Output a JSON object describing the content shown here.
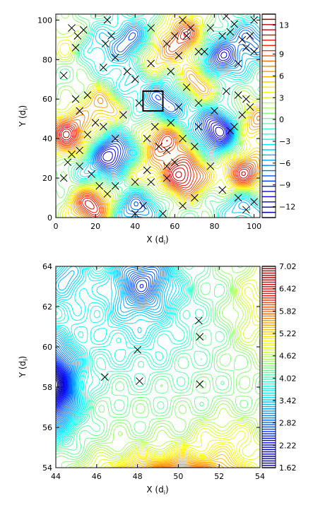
{
  "chart_data": [
    {
      "type": "contour",
      "xlabel": "X (d",
      "xlabel_sub": "i",
      "xlabel_close": ")",
      "ylabel": "Y (d",
      "ylabel_sub": "i",
      "ylabel_close": ")",
      "xlim": [
        0,
        103
      ],
      "ylim": [
        0,
        103
      ],
      "xticks": [
        "0",
        "20",
        "40",
        "60",
        "80",
        "100"
      ],
      "yticks": [
        "0",
        "20",
        "40",
        "60",
        "80",
        "100"
      ],
      "colorbar": {
        "ticks": [
          "13",
          "9",
          "6",
          "3",
          "0",
          "−3",
          "−6",
          "−9",
          "−12"
        ],
        "range": [
          -13.5,
          14.5
        ]
      },
      "peaks": [
        {
          "x": 18,
          "y": 7,
          "v": 13
        },
        {
          "x": 6,
          "y": 42,
          "v": 12
        },
        {
          "x": 65,
          "y": 21,
          "v": 13
        },
        {
          "x": 95,
          "y": 22,
          "v": 12
        },
        {
          "x": 55,
          "y": 40,
          "v": 11
        },
        {
          "x": 25,
          "y": 58,
          "v": 9
        },
        {
          "x": 47,
          "y": 83,
          "v": 10
        },
        {
          "x": 65,
          "y": 92,
          "v": 10
        },
        {
          "x": 72,
          "y": 68,
          "v": 9
        },
        {
          "x": 100,
          "y": 48,
          "v": 8
        },
        {
          "x": 40,
          "y": 22,
          "v": 7
        },
        {
          "x": 10,
          "y": 88,
          "v": 8
        },
        {
          "x": 30,
          "y": 31,
          "v": -13
        },
        {
          "x": 40,
          "y": 88,
          "v": -12
        },
        {
          "x": 82,
          "y": 44,
          "v": -13
        },
        {
          "x": 82,
          "y": 80,
          "v": -11
        },
        {
          "x": 16,
          "y": 87,
          "v": -8
        },
        {
          "x": 40,
          "y": 6,
          "v": -9
        },
        {
          "x": 95,
          "y": 6,
          "v": -7
        },
        {
          "x": 33,
          "y": 66,
          "v": -6
        },
        {
          "x": 54,
          "y": 60,
          "v": -7
        },
        {
          "x": 100,
          "y": 90,
          "v": -7
        },
        {
          "x": 62,
          "y": 52,
          "v": -5
        },
        {
          "x": 16,
          "y": 20,
          "v": -4
        }
      ],
      "markers": [
        [
          8,
          96
        ],
        [
          11,
          92
        ],
        [
          14,
          95
        ],
        [
          10,
          86
        ],
        [
          25,
          88
        ],
        [
          28,
          92
        ],
        [
          30,
          81
        ],
        [
          36,
          74
        ],
        [
          40,
          70
        ],
        [
          48,
          78
        ],
        [
          56,
          88
        ],
        [
          60,
          92
        ],
        [
          62,
          82
        ],
        [
          58,
          74
        ],
        [
          66,
          92
        ],
        [
          68,
          96
        ],
        [
          72,
          84
        ],
        [
          75,
          84
        ],
        [
          84,
          92
        ],
        [
          88,
          94
        ],
        [
          90,
          98
        ],
        [
          94,
          90
        ],
        [
          96,
          86
        ],
        [
          92,
          78
        ],
        [
          98,
          92
        ],
        [
          100,
          84
        ],
        [
          96,
          60
        ],
        [
          98,
          56
        ],
        [
          92,
          62
        ],
        [
          94,
          52
        ],
        [
          86,
          64
        ],
        [
          88,
          44
        ],
        [
          90,
          46
        ],
        [
          80,
          54
        ],
        [
          72,
          58
        ],
        [
          66,
          66
        ],
        [
          62,
          56
        ],
        [
          58,
          48
        ],
        [
          50,
          46
        ],
        [
          46,
          40
        ],
        [
          52,
          36
        ],
        [
          56,
          34
        ],
        [
          56,
          26
        ],
        [
          60,
          28
        ],
        [
          56,
          20
        ],
        [
          46,
          24
        ],
        [
          48,
          18
        ],
        [
          40,
          18
        ],
        [
          30,
          16
        ],
        [
          26,
          12
        ],
        [
          22,
          16
        ],
        [
          18,
          22
        ],
        [
          12,
          26
        ],
        [
          8,
          32
        ],
        [
          12,
          34
        ],
        [
          6,
          28
        ],
        [
          16,
          42
        ],
        [
          20,
          48
        ],
        [
          24,
          46
        ],
        [
          30,
          40
        ],
        [
          34,
          52
        ],
        [
          12,
          54
        ],
        [
          10,
          60
        ],
        [
          16,
          62
        ],
        [
          24,
          76
        ],
        [
          42,
          58
        ],
        [
          4,
          20
        ],
        [
          40,
          2
        ],
        [
          44,
          6
        ],
        [
          54,
          2
        ],
        [
          64,
          6
        ],
        [
          70,
          10
        ],
        [
          78,
          26
        ],
        [
          84,
          14
        ],
        [
          92,
          10
        ],
        [
          96,
          4
        ],
        [
          100,
          8
        ],
        [
          64,
          40
        ],
        [
          70,
          36
        ],
        [
          72,
          46
        ],
        [
          4,
          72
        ],
        [
          26,
          100
        ],
        [
          48,
          96
        ],
        [
          64,
          100
        ],
        [
          78,
          96
        ],
        [
          86,
          102
        ],
        [
          100,
          100
        ]
      ],
      "inset_box": {
        "x0": 44,
        "x1": 54,
        "y0": 54,
        "y1": 64
      }
    },
    {
      "type": "contour",
      "xlabel": "X (d",
      "xlabel_sub": "i",
      "xlabel_close": ")",
      "ylabel": "Y (d",
      "ylabel_sub": "i",
      "ylabel_close": ")",
      "xlim": [
        44,
        54
      ],
      "ylim": [
        54,
        64
      ],
      "xticks": [
        "44",
        "46",
        "48",
        "50",
        "52",
        "54"
      ],
      "yticks": [
        "54",
        "56",
        "58",
        "60",
        "62",
        "64"
      ],
      "colorbar": {
        "ticks": [
          "7.02",
          "6.42",
          "5.82",
          "5.22",
          "4.62",
          "4.02",
          "3.42",
          "2.82",
          "2.22",
          "1.62"
        ],
        "range": [
          1.62,
          7.02
        ]
      },
      "markers": [
        [
          46.4,
          58.5
        ],
        [
          48.0,
          59.85
        ],
        [
          48.1,
          58.3
        ],
        [
          51.0,
          61.3
        ],
        [
          51.05,
          60.5
        ],
        [
          51.05,
          58.15
        ]
      ]
    }
  ]
}
